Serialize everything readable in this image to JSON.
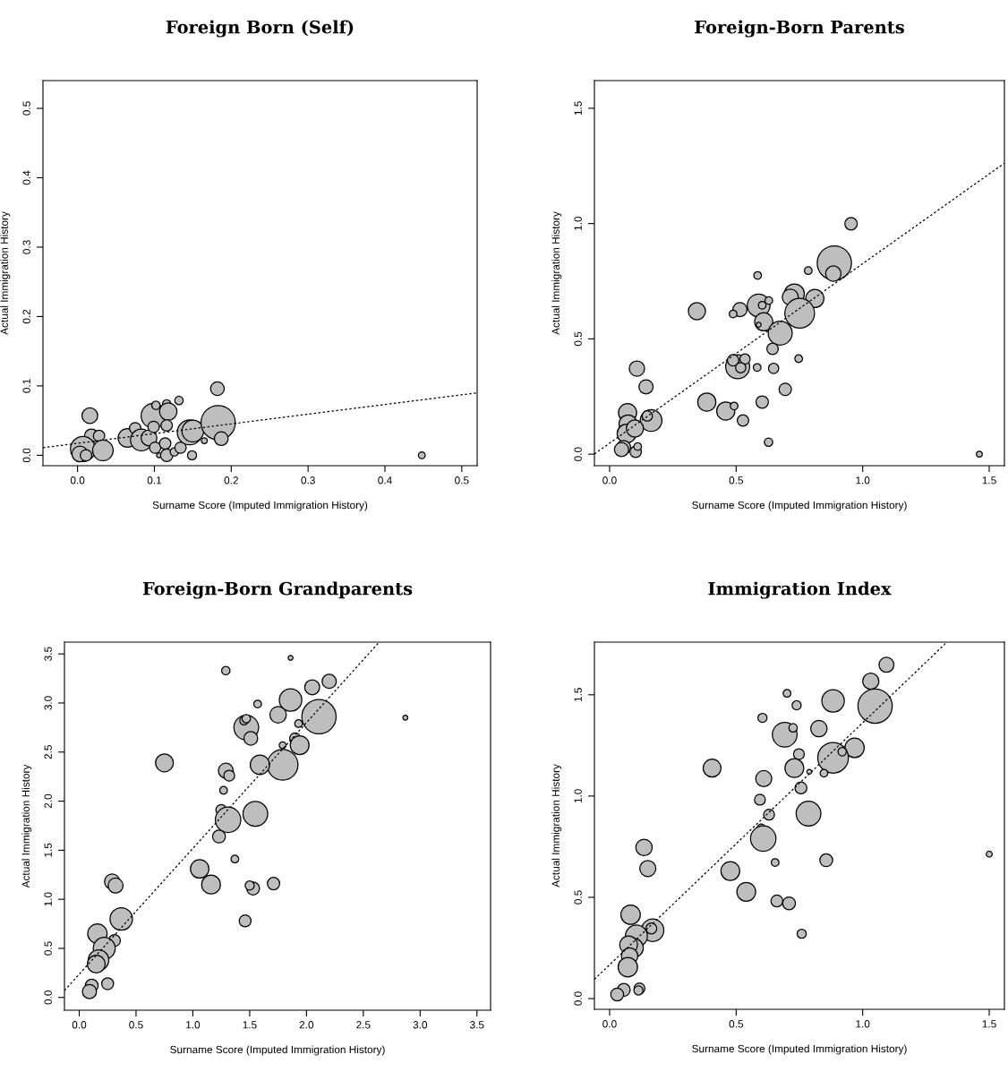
{
  "chart_data": [
    {
      "type": "bubble",
      "title": "Foreign Born (Self)",
      "xlabel": "Surname Score (Imputed Immigration History)",
      "ylabel": "Actual Immigration History",
      "xlim": [
        -0.045,
        0.52
      ],
      "ylim": [
        -0.015,
        0.54
      ],
      "xticks": [
        {
          "value": 0,
          "label": "0.0"
        },
        {
          "value": 0.1,
          "label": "0.1"
        },
        {
          "value": 0.2,
          "label": "0.2"
        },
        {
          "value": 0.3,
          "label": "0.3"
        },
        {
          "value": 0.4,
          "label": "0.4"
        },
        {
          "value": 0.5,
          "label": "0.5"
        }
      ],
      "yticks": [
        {
          "value": 0,
          "label": "0.0"
        },
        {
          "value": 0.1,
          "label": "0.1"
        },
        {
          "value": 0.2,
          "label": "0.2"
        },
        {
          "value": 0.3,
          "label": "0.3"
        },
        {
          "value": 0.4,
          "label": "0.4"
        },
        {
          "value": 0.5,
          "label": "0.5"
        }
      ],
      "series": [
        {
          "color": "#bebebe",
          "x": [
            0.016,
            0.018,
            0.028,
            0.007,
            0.003,
            0.011,
            0.033,
            0.065,
            0.075,
            0.083,
            0.093,
            0.099,
            0.099,
            0.102,
            0.116,
            0.118,
            0.116,
            0.132,
            0.101,
            0.114,
            0.106,
            0.116,
            0.126,
            0.134,
            0.149,
            0.146,
            0.15,
            0.165,
            0.183,
            0.187,
            0.182,
            0.448
          ],
          "values": [
            0.057,
            0.028,
            0.028,
            0.009,
            0.002,
            0.0,
            0.007,
            0.025,
            0.039,
            0.022,
            0.025,
            0.057,
            0.041,
            0.072,
            0.074,
            0.063,
            0.043,
            0.079,
            0.011,
            0.017,
            0.0,
            0.0,
            0.005,
            0.011,
            0.0,
            0.033,
            0.035,
            0.021,
            0.047,
            0.024,
            0.096,
            0.0
          ],
          "sizes": [
            0.21,
            0.16,
            0.11,
            0.53,
            0.21,
            0.11,
            0.36,
            0.3,
            0.11,
            0.4,
            0.21,
            0.53,
            0.11,
            0.06,
            0.06,
            0.26,
            0.11,
            0.06,
            0.11,
            0.11,
            0.02,
            0.13,
            0.06,
            0.11,
            0.07,
            0.53,
            0.4,
            0.03,
            1,
            0.16,
            0.16,
            0.04
          ]
        },
        {
          "type": "line",
          "color": "#000000",
          "line_style": "dotted",
          "marker": "none",
          "x": [
            -0.045,
            0.52
          ],
          "values": [
            0.011,
            0.09
          ]
        }
      ]
    },
    {
      "type": "bubble",
      "title": "Foreign-Born Parents",
      "xlabel": "Surname Score (Imputed Immigration History)",
      "ylabel": "Actual Immigration History",
      "xlim": [
        -0.06,
        1.56
      ],
      "ylim": [
        -0.05,
        1.62
      ],
      "xticks": [
        {
          "value": 0,
          "label": "0.0"
        },
        {
          "value": 0.5,
          "label": "0.5"
        },
        {
          "value": 1,
          "label": "1.0"
        },
        {
          "value": 1.5,
          "label": "1.5"
        }
      ],
      "yticks": [
        {
          "value": 0,
          "label": "0.0"
        },
        {
          "value": 0.5,
          "label": "0.5"
        },
        {
          "value": 1,
          "label": "1.0"
        },
        {
          "value": 1.5,
          "label": "1.5"
        }
      ],
      "series": [
        {
          "color": "#bebebe",
          "x": [
            0.954,
            0.888,
            0.884,
            0.785,
            0.585,
            0.73,
            0.714,
            0.811,
            0.751,
            0.589,
            0.603,
            0.629,
            0.515,
            0.488,
            0.345,
            0.609,
            0.589,
            0.674,
            0.644,
            0.506,
            0.488,
            0.535,
            0.518,
            0.583,
            0.648,
            0.747,
            0.108,
            0.144,
            0.384,
            0.459,
            0.492,
            0.527,
            0.603,
            0.694,
            0.628,
            0.071,
            0.164,
            0.149,
            0.073,
            0.067,
            0.1,
            0.055,
            0.047,
            0.103,
            0.111,
            1.461
          ],
          "values": [
            0.999,
            0.829,
            0.783,
            0.796,
            0.775,
            0.695,
            0.681,
            0.675,
            0.611,
            0.645,
            0.646,
            0.666,
            0.627,
            0.608,
            0.62,
            0.574,
            0.561,
            0.525,
            0.457,
            0.379,
            0.407,
            0.413,
            0.375,
            0.376,
            0.372,
            0.414,
            0.371,
            0.292,
            0.226,
            0.187,
            0.209,
            0.146,
            0.226,
            0.281,
            0.052,
            0.18,
            0.146,
            0.166,
            0.131,
            0.089,
            0.111,
            0.029,
            0.02,
            0.01,
            0.033,
            0.0
          ],
          "sizes": [
            0.13,
            1,
            0.2,
            0.05,
            0.05,
            0.34,
            0.22,
            0.28,
            0.75,
            0.44,
            0.05,
            0.05,
            0.17,
            0.05,
            0.25,
            0.28,
            0.02,
            0.49,
            0.11,
            0.49,
            0.11,
            0.09,
            0.09,
            0.05,
            0.09,
            0.05,
            0.2,
            0.17,
            0.28,
            0.28,
            0.05,
            0.11,
            0.13,
            0.13,
            0.06,
            0.28,
            0.4,
            0.09,
            0.28,
            0.3,
            0.25,
            0.17,
            0.17,
            0.11,
            0.05,
            0.03
          ]
        },
        {
          "type": "line",
          "color": "#000000",
          "line_style": "dotted",
          "marker": "none",
          "x": [
            -0.06,
            1.56
          ],
          "values": [
            0.001,
            1.262
          ]
        }
      ]
    },
    {
      "type": "bubble",
      "title": "Foreign-Born Grandparents",
      "xlabel": "Surname Score (Imputed Immigration History)",
      "ylabel": "Actual Immigration History",
      "xlim": [
        -0.13,
        3.62
      ],
      "ylim": [
        -0.13,
        3.62
      ],
      "xticks": [
        {
          "value": 0,
          "label": "0.0"
        },
        {
          "value": 0.5,
          "label": "0.5"
        },
        {
          "value": 1,
          "label": "1.0"
        },
        {
          "value": 1.5,
          "label": "1.5"
        },
        {
          "value": 2,
          "label": "2.0"
        },
        {
          "value": 2.5,
          "label": "2.5"
        },
        {
          "value": 3,
          "label": "3.0"
        },
        {
          "value": 3.5,
          "label": "3.5"
        }
      ],
      "yticks": [
        {
          "value": 0,
          "label": "0.0"
        },
        {
          "value": 0.5,
          "label": "0.5"
        },
        {
          "value": 1,
          "label": "1.0"
        },
        {
          "value": 1.5,
          "label": "1.5"
        },
        {
          "value": 2,
          "label": "2.0"
        },
        {
          "value": 2.5,
          "label": "2.5"
        },
        {
          "value": 3,
          "label": "3.0"
        },
        {
          "value": 3.5,
          "label": "3.5"
        }
      ],
      "series": [
        {
          "color": "#bebebe",
          "x": [
            1.86,
            1.29,
            2.2,
            2.05,
            1.86,
            1.57,
            1.75,
            2.11,
            1.93,
            1.47,
            1.45,
            1.47,
            1.51,
            1.9,
            1.94,
            1.79,
            1.79,
            1.59,
            0.75,
            1.29,
            1.32,
            1.27,
            1.25,
            1.31,
            1.55,
            1.23,
            1.37,
            1.06,
            1.16,
            1.53,
            1.5,
            1.71,
            1.46,
            0.29,
            0.32,
            0.37,
            0.16,
            0.31,
            0.22,
            0.17,
            0.15,
            0.25,
            0.11,
            2.87,
            0.09
          ],
          "values": [
            3.46,
            3.33,
            3.22,
            3.16,
            3.03,
            2.99,
            2.88,
            2.86,
            2.79,
            2.75,
            2.82,
            2.84,
            2.64,
            2.64,
            2.57,
            2.57,
            2.37,
            2.37,
            2.39,
            2.31,
            2.26,
            2.11,
            1.91,
            1.81,
            1.87,
            1.64,
            1.41,
            1.31,
            1.15,
            1.11,
            1.14,
            1.16,
            0.78,
            1.18,
            1.14,
            0.8,
            0.65,
            0.58,
            0.5,
            0.38,
            0.34,
            0.14,
            0.12,
            2.85,
            0.06
          ],
          "sizes": [
            0.02,
            0.06,
            0.17,
            0.19,
            0.43,
            0.05,
            0.23,
            1,
            0.05,
            0.52,
            0.06,
            0.06,
            0.16,
            0.1,
            0.3,
            0.04,
            0.8,
            0.32,
            0.27,
            0.19,
            0.1,
            0.05,
            0.1,
            0.55,
            0.52,
            0.14,
            0.05,
            0.29,
            0.3,
            0.14,
            0.07,
            0.13,
            0.12,
            0.2,
            0.19,
            0.43,
            0.32,
            0.12,
            0.41,
            0.36,
            0.27,
            0.12,
            0.14,
            0.02,
            0.17
          ]
        },
        {
          "type": "line",
          "color": "#000000",
          "line_style": "dotted",
          "marker": "none",
          "x": [
            -0.13,
            2.64
          ],
          "values": [
            0.07,
            3.62
          ]
        }
      ]
    },
    {
      "type": "bubble",
      "title": "Immigration Index",
      "xlabel": "Surname Score (Imputed Immigration History)",
      "ylabel": "Actual Immigration History",
      "xlim": [
        -0.06,
        1.56
      ],
      "ylim": [
        -0.053,
        1.76
      ],
      "xticks": [
        {
          "value": 0,
          "label": "0.0"
        },
        {
          "value": 0.5,
          "label": "0.5"
        },
        {
          "value": 1,
          "label": "1.0"
        },
        {
          "value": 1.5,
          "label": "1.5"
        }
      ],
      "yticks": [
        {
          "value": 0,
          "label": "0.0"
        },
        {
          "value": 0.5,
          "label": "0.5"
        },
        {
          "value": 1,
          "label": "1.0"
        },
        {
          "value": 1.5,
          "label": "1.5"
        }
      ],
      "series": [
        {
          "color": "#bebebe",
          "x": [
            1.094,
            1.032,
            0.701,
            0.739,
            0.883,
            1.049,
            0.604,
            0.692,
            0.725,
            0.827,
            0.968,
            0.883,
            0.919,
            0.748,
            0.73,
            0.789,
            0.847,
            0.405,
            0.609,
            0.756,
            0.594,
            0.63,
            0.786,
            0.599,
            0.607,
            0.654,
            0.856,
            0.477,
            0.54,
            0.661,
            0.709,
            0.759,
            0.136,
            0.151,
            0.083,
            0.17,
            0.165,
            0.106,
            0.096,
            0.075,
            0.079,
            0.072,
            0.056,
            0.118,
            0.114,
            1.5,
            0.03
          ],
          "values": [
            1.648,
            1.567,
            1.507,
            1.448,
            1.47,
            1.444,
            1.386,
            1.303,
            1.337,
            1.333,
            1.238,
            1.189,
            1.219,
            1.207,
            1.138,
            1.12,
            1.113,
            1.138,
            1.086,
            1.04,
            0.982,
            0.908,
            0.913,
            0.843,
            0.79,
            0.672,
            0.683,
            0.63,
            0.527,
            0.482,
            0.47,
            0.32,
            0.746,
            0.642,
            0.414,
            0.337,
            0.346,
            0.309,
            0.25,
            0.265,
            0.21,
            0.155,
            0.043,
            0.05,
            0.04,
            0.713,
            0.02
          ],
          "sizes": [
            0.19,
            0.22,
            0.05,
            0.07,
            0.43,
            1,
            0.07,
            0.52,
            0.06,
            0.23,
            0.32,
            0.8,
            0.06,
            0.1,
            0.3,
            0.02,
            0.05,
            0.27,
            0.22,
            0.12,
            0.1,
            0.1,
            0.52,
            0.05,
            0.55,
            0.05,
            0.14,
            0.3,
            0.3,
            0.12,
            0.14,
            0.07,
            0.23,
            0.22,
            0.32,
            0.43,
            0.1,
            0.41,
            0.3,
            0.27,
            0.23,
            0.32,
            0.14,
            0.1,
            0.07,
            0.03,
            0.14
          ]
        },
        {
          "type": "line",
          "color": "#000000",
          "line_style": "dotted",
          "marker": "none",
          "x": [
            -0.06,
            1.333
          ],
          "values": [
            0.095,
            1.76
          ]
        }
      ]
    }
  ]
}
